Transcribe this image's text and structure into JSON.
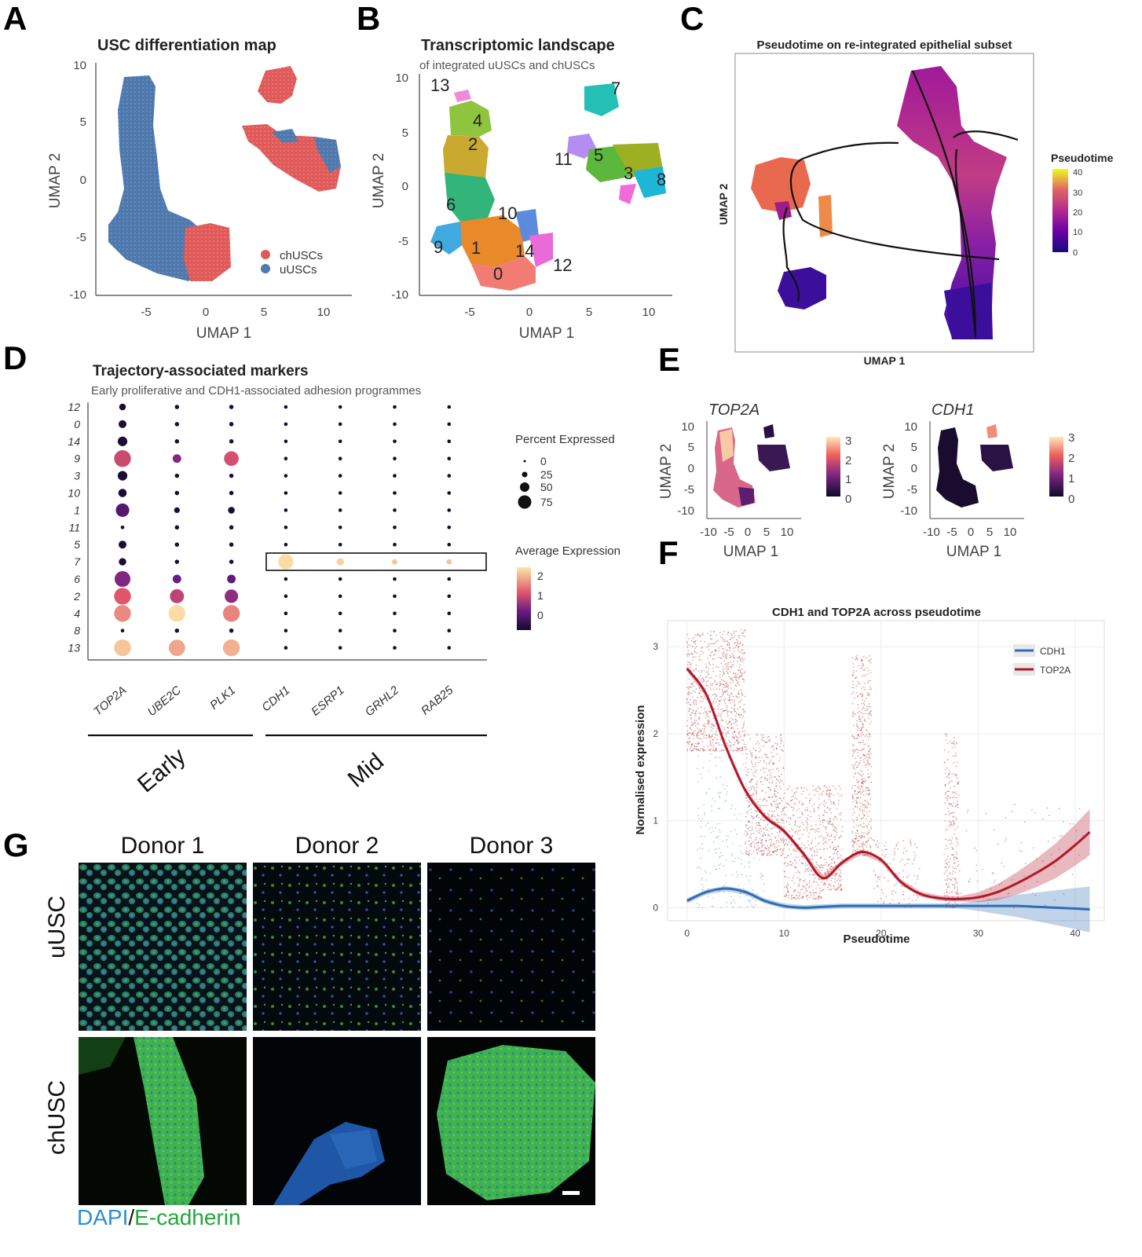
{
  "panel_letters": {
    "A": "A",
    "B": "B",
    "C": "C",
    "D": "D",
    "E": "E",
    "F": "F",
    "G": "G"
  },
  "panelA": {
    "title": "USC differentiation map",
    "xlabel": "UMAP 1",
    "ylabel": "UMAP 2",
    "xticks": [
      "-5",
      "0",
      "5",
      "10"
    ],
    "yticks": [
      "10",
      "5",
      "0",
      "-5",
      "-10"
    ],
    "legend": [
      {
        "label": "chUSCs",
        "color": "#e05a5a"
      },
      {
        "label": "uUSCs",
        "color": "#4f79ad"
      }
    ]
  },
  "panelB": {
    "title": "Transcriptomic landscape",
    "subtitle": "of integrated uUSCs and chUSCs",
    "xlabel": "UMAP 1",
    "ylabel": "UMAP 2",
    "xticks": [
      "-5",
      "0",
      "5",
      "10"
    ],
    "yticks": [
      "10",
      "5",
      "0",
      "-5",
      "-10"
    ],
    "clusters": [
      {
        "id": "13",
        "color": "#f28ad8"
      },
      {
        "id": "4",
        "color": "#8fc43f"
      },
      {
        "id": "2",
        "color": "#c9a92f"
      },
      {
        "id": "6",
        "color": "#33b47a"
      },
      {
        "id": "10",
        "color": "#5c8bdd"
      },
      {
        "id": "9",
        "color": "#3fa9e0"
      },
      {
        "id": "1",
        "color": "#e8892a"
      },
      {
        "id": "14",
        "color": "#e96ad8"
      },
      {
        "id": "0",
        "color": "#f27b73"
      },
      {
        "id": "12",
        "color": "#f26ad9"
      },
      {
        "id": "7",
        "color": "#25c0b5"
      },
      {
        "id": "11",
        "color": "#b58df0"
      },
      {
        "id": "5",
        "color": "#5bb83c"
      },
      {
        "id": "3",
        "color": "#9daf22"
      },
      {
        "id": "8",
        "color": "#1fb5d6"
      }
    ]
  },
  "panelC": {
    "title": "Pseudotime on re-integrated epithelial subset",
    "xlabel": "UMAP 1",
    "ylabel": "UMAP 2",
    "legend_title": "Pseudotime",
    "legend_ticks": [
      "40",
      "30",
      "20",
      "10",
      "0"
    ]
  },
  "panelD": {
    "title": "Trajectory-associated markers",
    "subtitle": "Early proliferative and CDH1-associated adhesion programmes",
    "clusters": [
      "12",
      "0",
      "14",
      "9",
      "3",
      "10",
      "1",
      "11",
      "5",
      "7",
      "6",
      "2",
      "4",
      "8",
      "13"
    ],
    "genes": [
      "TOP2A",
      "UBE2C",
      "PLK1",
      "CDH1",
      "ESRP1",
      "GRHL2",
      "RAB25"
    ],
    "groups": [
      {
        "label": "Early"
      },
      {
        "label": "Mid"
      }
    ],
    "size_legend_title": "Percent Expressed",
    "size_legend": [
      "0",
      "25",
      "50",
      "75"
    ],
    "color_legend_title": "Average Expression",
    "color_legend": [
      "2",
      "1",
      "0"
    ],
    "dots": [
      {
        "cluster": "12",
        "gene": "TOP2A",
        "pct": 8,
        "avg": -0.5
      },
      {
        "cluster": "0",
        "gene": "TOP2A",
        "pct": 12,
        "avg": -0.5
      },
      {
        "cluster": "14",
        "gene": "TOP2A",
        "pct": 20,
        "avg": -0.5
      },
      {
        "cluster": "9",
        "gene": "TOP2A",
        "pct": 75,
        "avg": 1.1
      },
      {
        "cluster": "3",
        "gene": "TOP2A",
        "pct": 20,
        "avg": -0.5
      },
      {
        "cluster": "10",
        "gene": "TOP2A",
        "pct": 14,
        "avg": -0.5
      },
      {
        "cluster": "1",
        "gene": "TOP2A",
        "pct": 45,
        "avg": 0.1
      },
      {
        "cluster": "5",
        "gene": "TOP2A",
        "pct": 12,
        "avg": -0.5
      },
      {
        "cluster": "7",
        "gene": "TOP2A",
        "pct": 10,
        "avg": -0.5
      },
      {
        "cluster": "6",
        "gene": "TOP2A",
        "pct": 65,
        "avg": 0.5
      },
      {
        "cluster": "2",
        "gene": "TOP2A",
        "pct": 75,
        "avg": 1.3
      },
      {
        "cluster": "4",
        "gene": "TOP2A",
        "pct": 75,
        "avg": 1.75
      },
      {
        "cluster": "13",
        "gene": "TOP2A",
        "pct": 75,
        "avg": 2.3
      },
      {
        "cluster": "12",
        "gene": "UBE2C",
        "pct": 2,
        "avg": -0.5
      },
      {
        "cluster": "0",
        "gene": "UBE2C",
        "pct": 2,
        "avg": -0.5
      },
      {
        "cluster": "14",
        "gene": "UBE2C",
        "pct": 2,
        "avg": -0.5
      },
      {
        "cluster": "9",
        "gene": "UBE2C",
        "pct": 15,
        "avg": 0.5
      },
      {
        "cluster": "3",
        "gene": "UBE2C",
        "pct": 2,
        "avg": -0.5
      },
      {
        "cluster": "10",
        "gene": "UBE2C",
        "pct": 2,
        "avg": -0.5
      },
      {
        "cluster": "1",
        "gene": "UBE2C",
        "pct": 5,
        "avg": -0.5
      },
      {
        "cluster": "11",
        "gene": "UBE2C",
        "pct": 2,
        "avg": -0.5
      },
      {
        "cluster": "5",
        "gene": "UBE2C",
        "pct": 2,
        "avg": -0.5
      },
      {
        "cluster": "7",
        "gene": "UBE2C",
        "pct": 2,
        "avg": -0.5
      },
      {
        "cluster": "6",
        "gene": "UBE2C",
        "pct": 15,
        "avg": 0.3
      },
      {
        "cluster": "2",
        "gene": "UBE2C",
        "pct": 50,
        "avg": 1.0
      },
      {
        "cluster": "4",
        "gene": "UBE2C",
        "pct": 75,
        "avg": 2.5
      },
      {
        "cluster": "8",
        "gene": "UBE2C",
        "pct": 2,
        "avg": -0.5
      },
      {
        "cluster": "13",
        "gene": "UBE2C",
        "pct": 70,
        "avg": 2.0
      },
      {
        "cluster": "12",
        "gene": "PLK1",
        "pct": 2,
        "avg": -0.5
      },
      {
        "cluster": "0",
        "gene": "PLK1",
        "pct": 2,
        "avg": -0.5
      },
      {
        "cluster": "14",
        "gene": "PLK1",
        "pct": 2,
        "avg": -0.5
      },
      {
        "cluster": "9",
        "gene": "PLK1",
        "pct": 55,
        "avg": 1.2
      },
      {
        "cluster": "3",
        "gene": "PLK1",
        "pct": 2,
        "avg": -0.5
      },
      {
        "cluster": "10",
        "gene": "PLK1",
        "pct": 2,
        "avg": -0.5
      },
      {
        "cluster": "1",
        "gene": "PLK1",
        "pct": 8,
        "avg": -0.5
      },
      {
        "cluster": "11",
        "gene": "PLK1",
        "pct": 2,
        "avg": -0.5
      },
      {
        "cluster": "5",
        "gene": "PLK1",
        "pct": 2,
        "avg": -0.5
      },
      {
        "cluster": "7",
        "gene": "PLK1",
        "pct": 2,
        "avg": -0.5
      },
      {
        "cluster": "6",
        "gene": "PLK1",
        "pct": 15,
        "avg": 0.2
      },
      {
        "cluster": "2",
        "gene": "PLK1",
        "pct": 45,
        "avg": 0.6
      },
      {
        "cluster": "4",
        "gene": "PLK1",
        "pct": 75,
        "avg": 1.7
      },
      {
        "cluster": "8",
        "gene": "PLK1",
        "pct": 2,
        "avg": -0.5
      },
      {
        "cluster": "13",
        "gene": "PLK1",
        "pct": 75,
        "avg": 2.1
      },
      {
        "cluster": "7",
        "gene": "CDH1",
        "pct": 60,
        "avg": 2.5
      },
      {
        "cluster": "7",
        "gene": "ESRP1",
        "pct": 10,
        "avg": 2.4
      },
      {
        "cluster": "7",
        "gene": "GRHL2",
        "pct": 4,
        "avg": 2.3
      },
      {
        "cluster": "7",
        "gene": "RAB25",
        "pct": 4,
        "avg": 2.3
      }
    ]
  },
  "panelE": {
    "plots": [
      {
        "gene": "TOP2A",
        "xlabel": "UMAP 1",
        "ylabel": "UMAP 2",
        "xticks": [
          "-10",
          "-5",
          "0",
          "5",
          "10"
        ],
        "yticks": [
          "10",
          "5",
          "0",
          "-5",
          "-10"
        ],
        "legend_ticks": [
          "3",
          "2",
          "1",
          "0"
        ]
      },
      {
        "gene": "CDH1",
        "xlabel": "UMAP 1",
        "ylabel": "UMAP 2",
        "xticks": [
          "-10",
          "-5",
          "0",
          "5",
          "10"
        ],
        "yticks": [
          "10",
          "5",
          "0",
          "-5",
          "-10"
        ],
        "legend_ticks": [
          "3",
          "2",
          "1",
          "0"
        ]
      }
    ]
  },
  "chart_data": [
    {
      "type": "line",
      "title": "CDH1 and TOP2A across pseudotime",
      "xlabel": "Pseudotime",
      "ylabel": "Normalised expression",
      "xlim": [
        -2,
        43
      ],
      "ylim": [
        -0.15,
        3.3
      ],
      "xticks": [
        "0",
        "10",
        "20",
        "30",
        "40"
      ],
      "yticks": [
        "0",
        "1",
        "2",
        "3"
      ],
      "grid": true,
      "legend_position": "top-right",
      "series": [
        {
          "name": "CDH1",
          "color": "#2f6db5",
          "x": [
            0,
            2,
            4,
            6,
            8,
            10,
            12,
            14,
            16,
            18,
            20,
            22,
            24,
            26,
            28,
            30,
            32,
            34,
            36,
            38,
            40,
            41.5
          ],
          "y": [
            0.08,
            0.18,
            0.22,
            0.18,
            0.08,
            0.02,
            0.0,
            0.01,
            0.02,
            0.02,
            0.02,
            0.02,
            0.02,
            0.02,
            0.02,
            0.02,
            0.02,
            0.02,
            0.01,
            0.0,
            -0.01,
            -0.02
          ]
        },
        {
          "name": "TOP2A",
          "color": "#b2182b",
          "x": [
            0,
            2,
            4,
            6,
            8,
            10,
            12,
            14,
            16,
            18,
            20,
            22,
            24,
            26,
            28,
            30,
            32,
            34,
            36,
            38,
            40,
            41.5
          ],
          "y": [
            2.75,
            2.45,
            1.85,
            1.35,
            1.05,
            0.88,
            0.62,
            0.34,
            0.52,
            0.64,
            0.55,
            0.3,
            0.16,
            0.11,
            0.1,
            0.12,
            0.18,
            0.28,
            0.4,
            0.54,
            0.72,
            0.87
          ]
        }
      ]
    }
  ],
  "panelG": {
    "columns": [
      "Donor 1",
      "Donor 2",
      "Donor 3"
    ],
    "rows": [
      "uUSC",
      "chUSC"
    ],
    "caption_dapi": "DAPI",
    "caption_sep": "/",
    "caption_ecad": "E-cadherin",
    "colors": {
      "dapi": "#2b8fd6",
      "ecad": "#22a83a"
    }
  }
}
